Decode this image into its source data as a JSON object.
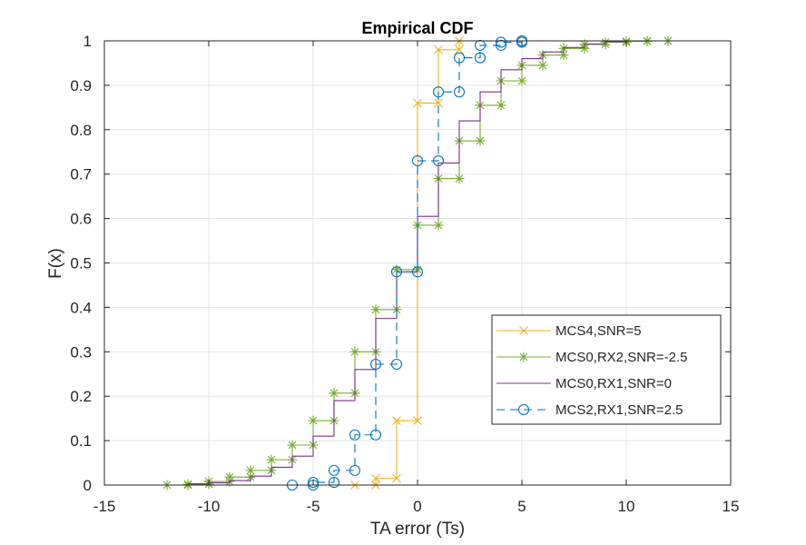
{
  "chart_data": {
    "type": "line",
    "title": "Empirical CDF",
    "xlabel": "TA error (Ts)",
    "ylabel": "F(x)",
    "xlim": [
      -15,
      15
    ],
    "ylim": [
      0,
      1
    ],
    "xticks": [
      -15,
      -10,
      -5,
      0,
      5,
      10,
      15
    ],
    "xtick_labels": [
      "-15",
      "-10",
      "-5",
      "0",
      "5",
      "10",
      "15"
    ],
    "yticks": [
      0,
      0.1,
      0.2,
      0.3,
      0.4,
      0.5,
      0.6,
      0.7,
      0.8,
      0.9,
      1
    ],
    "ytick_labels": [
      "0",
      "0.1",
      "0.2",
      "0.3",
      "0.4",
      "0.5",
      "0.6",
      "0.7",
      "0.8",
      "0.9",
      "1"
    ],
    "grid": true,
    "legend_position": "right-lower",
    "series": [
      {
        "name": "MCS4,SNR=5",
        "color": "#EDB120",
        "line": "solid",
        "marker": "x",
        "steps": [
          [
            -3,
            0
          ],
          [
            -2,
            0.015
          ],
          [
            -1,
            0.145
          ],
          [
            0,
            0.86
          ],
          [
            1,
            0.98
          ],
          [
            2,
            1
          ]
        ]
      },
      {
        "name": "MCS0,RX2,SNR=-2.5",
        "color": "#77AC30",
        "line": "solid",
        "marker": "*",
        "steps": [
          [
            -12,
            0
          ],
          [
            -11,
            0.002
          ],
          [
            -10,
            0.008
          ],
          [
            -9,
            0.018
          ],
          [
            -8,
            0.033
          ],
          [
            -7,
            0.057
          ],
          [
            -6,
            0.09
          ],
          [
            -5,
            0.145
          ],
          [
            -4,
            0.207
          ],
          [
            -3,
            0.3
          ],
          [
            -2,
            0.395
          ],
          [
            -1,
            0.485
          ],
          [
            0,
            0.585
          ],
          [
            1,
            0.69
          ],
          [
            2,
            0.775
          ],
          [
            3,
            0.855
          ],
          [
            4,
            0.91
          ],
          [
            5,
            0.945
          ],
          [
            6,
            0.968
          ],
          [
            7,
            0.983
          ],
          [
            8,
            0.992
          ],
          [
            9,
            0.997
          ],
          [
            10,
            0.999
          ],
          [
            11,
            1
          ],
          [
            12,
            1
          ]
        ]
      },
      {
        "name": "MCS0,RX1,SNR=0",
        "color": "#7E2F8E",
        "line": "solid",
        "marker": "none",
        "steps": [
          [
            -12,
            0
          ],
          [
            -11,
            0.003
          ],
          [
            -10,
            0.005
          ],
          [
            -9,
            0.01
          ],
          [
            -8,
            0.02
          ],
          [
            -7,
            0.04
          ],
          [
            -6,
            0.065
          ],
          [
            -5,
            0.11
          ],
          [
            -4,
            0.19
          ],
          [
            -3,
            0.26
          ],
          [
            -2,
            0.375
          ],
          [
            -1,
            0.48
          ],
          [
            0,
            0.605
          ],
          [
            1,
            0.725
          ],
          [
            2,
            0.82
          ],
          [
            3,
            0.885
          ],
          [
            4,
            0.935
          ],
          [
            5,
            0.96
          ],
          [
            6,
            0.975
          ],
          [
            7,
            0.985
          ],
          [
            8,
            0.993
          ],
          [
            9,
            0.998
          ],
          [
            10,
            1
          ]
        ]
      },
      {
        "name": "MCS2,RX1,SNR=2.5",
        "color": "#0072BD",
        "line": "dashed",
        "marker": "o",
        "steps": [
          [
            -6,
            0
          ],
          [
            -5,
            0.006
          ],
          [
            -4,
            0.033
          ],
          [
            -3,
            0.113
          ],
          [
            -2,
            0.272
          ],
          [
            -1,
            0.48
          ],
          [
            0,
            0.73
          ],
          [
            1,
            0.885
          ],
          [
            2,
            0.962
          ],
          [
            3,
            0.99
          ],
          [
            4,
            0.997
          ],
          [
            5,
            1
          ]
        ]
      }
    ]
  }
}
